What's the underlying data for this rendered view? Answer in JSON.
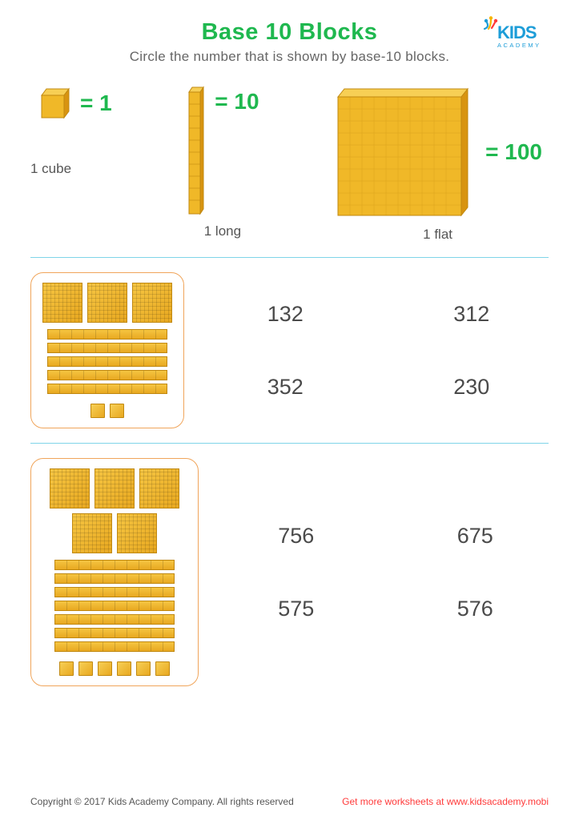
{
  "colors": {
    "title_green": "#1fb84f",
    "subtitle_gray": "#666666",
    "value_green": "#1fb84f",
    "divider": "#7fd4e8",
    "box_border": "#f0a55b",
    "block_fill": "#f0b828",
    "block_stroke": "#c08810",
    "answer_gray": "#4a4a4a",
    "logo_blue": "#1d9dd8",
    "logo_yellow": "#f7b500",
    "logo_red": "#ff3a3a",
    "footer_link": "#ff3a3a"
  },
  "header": {
    "title": "Base 10 Blocks",
    "subtitle": "Circle the number that is shown by base-10 blocks.",
    "logo_top": "KIDS",
    "logo_bottom": "A C A D E M Y"
  },
  "legend": {
    "cube": {
      "equals": "= 1",
      "label": "1 cube"
    },
    "long": {
      "equals": "= 10",
      "label": "1 long"
    },
    "flat": {
      "equals": "= 100",
      "label": "1 flat"
    }
  },
  "problems": [
    {
      "flats": 3,
      "longs": 5,
      "cubes": 2,
      "answers": [
        "132",
        "312",
        "352",
        "230"
      ]
    },
    {
      "flats": 5,
      "longs": 7,
      "cubes": 6,
      "answers": [
        "756",
        "675",
        "575",
        "576"
      ]
    }
  ],
  "footer": {
    "copyright": "Copyright © 2017 Kids Academy Company. All rights reserved",
    "link": "Get more worksheets at www.kidsacademy.mobi"
  }
}
